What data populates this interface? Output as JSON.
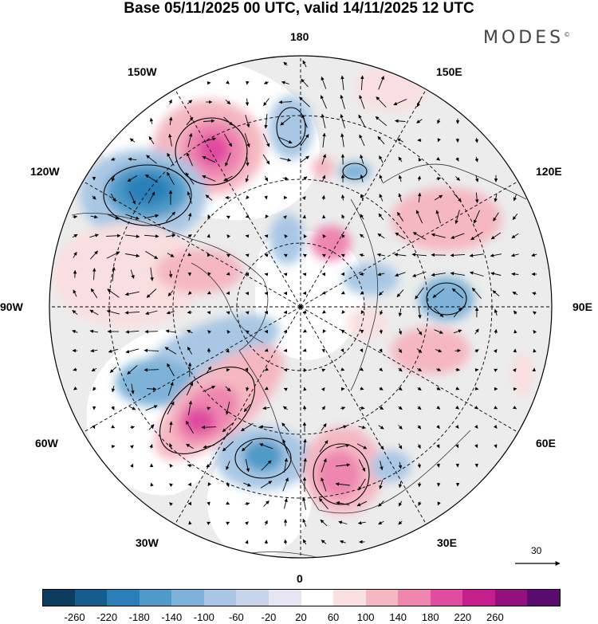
{
  "title": "Base 05/11/2025 00 UTC, valid 14/11/2025 12 UTC",
  "logo": {
    "text": "MODES",
    "mark": "©"
  },
  "longitude_labels": [
    "180",
    "150E",
    "120E",
    "90E",
    "60E",
    "30E",
    "0",
    "30W",
    "60W",
    "90W",
    "120W",
    "150W"
  ],
  "reference_vector": {
    "label": "30"
  },
  "colorbar": {
    "ticks": [
      "-260",
      "-220",
      "-180",
      "-140",
      "-100",
      "-60",
      "-20",
      "20",
      "60",
      "100",
      "140",
      "180",
      "220",
      "260"
    ],
    "colors": [
      "#0c3d5f",
      "#145d8c",
      "#2a7fb8",
      "#4f9ac8",
      "#7eb2d8",
      "#a9c7e4",
      "#c8d4ea",
      "#e6e6f2",
      "#ffffff",
      "#f9dfdf",
      "#f5b8c2",
      "#ee86b0",
      "#e04c9f",
      "#c41f8c",
      "#92117f",
      "#5a0c6e"
    ]
  }
}
